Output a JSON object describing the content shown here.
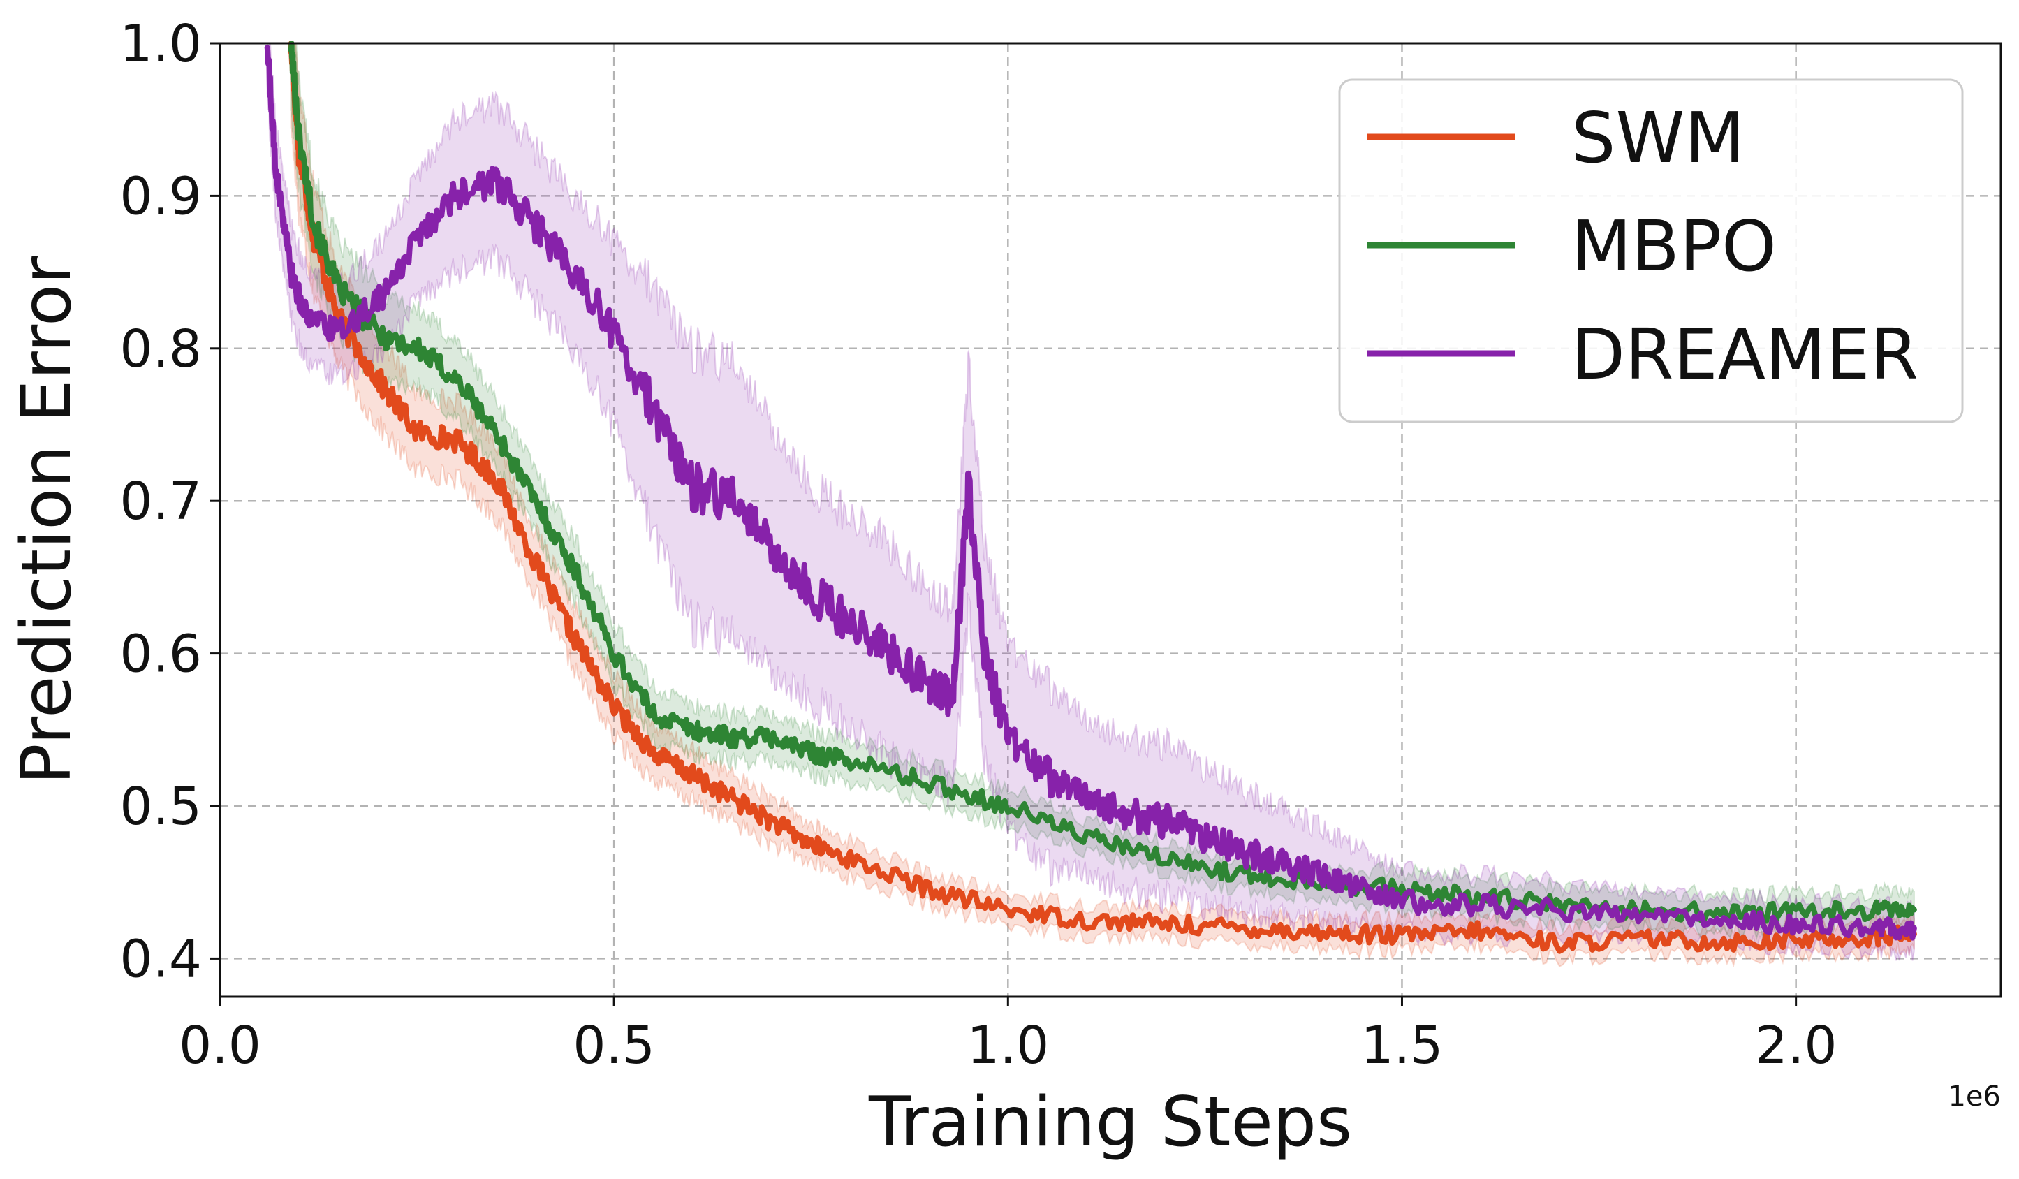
{
  "chart_data": {
    "type": "line",
    "title": "",
    "xlabel": "Training Steps",
    "ylabel": "Prediction Error",
    "x_offset_label": "1e6",
    "xlim": [
      0,
      2.26
    ],
    "ylim": [
      0.375,
      1.0
    ],
    "xticks": [
      0.0,
      0.5,
      1.0,
      1.5,
      2.0
    ],
    "xtick_labels": [
      "0.0",
      "0.5",
      "1.0",
      "1.5",
      "2.0"
    ],
    "yticks": [
      0.4,
      0.5,
      0.6,
      0.7,
      0.8,
      0.9,
      1.0
    ],
    "ytick_labels": [
      "0.4",
      "0.5",
      "0.6",
      "0.7",
      "0.8",
      "0.9",
      "1.0"
    ],
    "grid": true,
    "legend_position": "top-right",
    "series": [
      {
        "name": "SWM",
        "color": "#e24a1c",
        "x": [
          0.09,
          0.1,
          0.12,
          0.15,
          0.2,
          0.25,
          0.3,
          0.35,
          0.4,
          0.45,
          0.5,
          0.55,
          0.6,
          0.65,
          0.7,
          0.75,
          0.8,
          0.9,
          1.0,
          1.1,
          1.2,
          1.3,
          1.4,
          1.5,
          1.6,
          1.7,
          1.8,
          1.9,
          2.0,
          2.1,
          2.15
        ],
        "values": [
          1.0,
          0.93,
          0.87,
          0.82,
          0.78,
          0.745,
          0.74,
          0.715,
          0.66,
          0.61,
          0.565,
          0.535,
          0.52,
          0.505,
          0.49,
          0.475,
          0.465,
          0.445,
          0.432,
          0.425,
          0.423,
          0.42,
          0.417,
          0.415,
          0.418,
          0.41,
          0.413,
          0.411,
          0.412,
          0.414,
          0.416
        ],
        "band_width": [
          0.05,
          0.04,
          0.035,
          0.03,
          0.03,
          0.025,
          0.025,
          0.025,
          0.02,
          0.02,
          0.02,
          0.018,
          0.016,
          0.015,
          0.015,
          0.012,
          0.012,
          0.01,
          0.01,
          0.01,
          0.01,
          0.01,
          0.01,
          0.01,
          0.01,
          0.01,
          0.01,
          0.01,
          0.01,
          0.01,
          0.01
        ]
      },
      {
        "name": "MBPO",
        "color": "#2e8534",
        "x": [
          0.09,
          0.1,
          0.12,
          0.15,
          0.2,
          0.25,
          0.3,
          0.35,
          0.4,
          0.45,
          0.5,
          0.55,
          0.6,
          0.65,
          0.7,
          0.75,
          0.8,
          0.9,
          1.0,
          1.1,
          1.2,
          1.3,
          1.4,
          1.5,
          1.6,
          1.7,
          1.8,
          1.9,
          2.0,
          2.1,
          2.15
        ],
        "values": [
          1.0,
          0.94,
          0.88,
          0.84,
          0.81,
          0.8,
          0.78,
          0.745,
          0.7,
          0.655,
          0.6,
          0.56,
          0.55,
          0.545,
          0.545,
          0.535,
          0.53,
          0.515,
          0.5,
          0.48,
          0.465,
          0.455,
          0.45,
          0.445,
          0.44,
          0.435,
          0.432,
          0.43,
          0.43,
          0.432,
          0.432
        ],
        "band_width": [
          0.04,
          0.035,
          0.03,
          0.03,
          0.03,
          0.025,
          0.025,
          0.022,
          0.02,
          0.02,
          0.02,
          0.018,
          0.016,
          0.015,
          0.015,
          0.014,
          0.014,
          0.012,
          0.012,
          0.01,
          0.01,
          0.01,
          0.01,
          0.012,
          0.012,
          0.012,
          0.012,
          0.012,
          0.012,
          0.012,
          0.012
        ]
      },
      {
        "name": "DREAMER",
        "color": "#8722aa",
        "x": [
          0.06,
          0.07,
          0.09,
          0.11,
          0.15,
          0.2,
          0.25,
          0.3,
          0.35,
          0.4,
          0.45,
          0.5,
          0.55,
          0.6,
          0.65,
          0.7,
          0.75,
          0.8,
          0.85,
          0.9,
          0.93,
          0.95,
          0.97,
          1.0,
          1.05,
          1.1,
          1.15,
          1.2,
          1.25,
          1.3,
          1.35,
          1.4,
          1.45,
          1.5,
          1.6,
          1.7,
          1.8,
          1.9,
          2.0,
          2.1,
          2.15
        ],
        "values": [
          1.0,
          0.92,
          0.85,
          0.82,
          0.81,
          0.83,
          0.87,
          0.9,
          0.91,
          0.88,
          0.85,
          0.81,
          0.76,
          0.71,
          0.7,
          0.67,
          0.64,
          0.62,
          0.6,
          0.58,
          0.57,
          0.71,
          0.6,
          0.545,
          0.52,
          0.505,
          0.495,
          0.49,
          0.48,
          0.47,
          0.462,
          0.455,
          0.447,
          0.437,
          0.435,
          0.432,
          0.428,
          0.425,
          0.423,
          0.42,
          0.42
        ],
        "band_width": [
          0.03,
          0.03,
          0.03,
          0.03,
          0.03,
          0.035,
          0.04,
          0.05,
          0.05,
          0.05,
          0.05,
          0.06,
          0.08,
          0.09,
          0.09,
          0.08,
          0.07,
          0.07,
          0.07,
          0.06,
          0.06,
          0.08,
          0.07,
          0.06,
          0.06,
          0.05,
          0.05,
          0.05,
          0.045,
          0.04,
          0.035,
          0.03,
          0.025,
          0.02,
          0.02,
          0.018,
          0.015,
          0.015,
          0.015,
          0.015,
          0.015
        ]
      }
    ]
  }
}
